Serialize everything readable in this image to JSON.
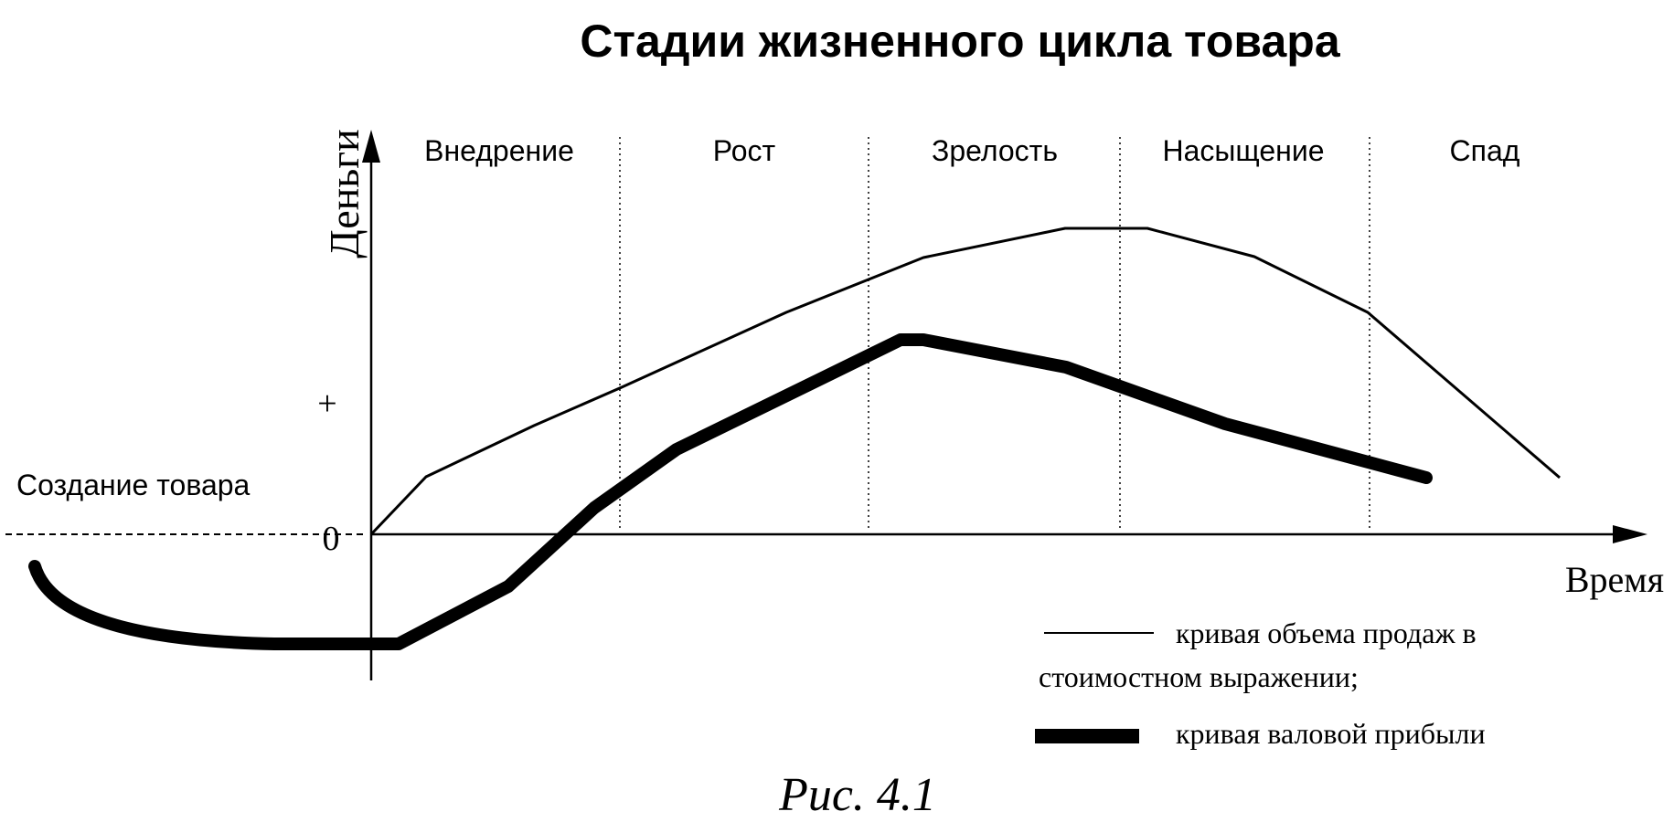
{
  "title": "Стадии жизненного цикла товара",
  "stages": [
    {
      "label": "Внедрение"
    },
    {
      "label": "Рост"
    },
    {
      "label": "Зрелость"
    },
    {
      "label": "Насыщение"
    },
    {
      "label": "Спад"
    }
  ],
  "pre_stage_label": "Создание товара",
  "axes": {
    "y_label": "Деньги",
    "x_label": "Время",
    "plus_mark": "+",
    "zero_mark": "0"
  },
  "legend": {
    "sales_line1": "кривая объема продаж в",
    "sales_line2": "стоимостном выражении;",
    "profit": "кривая валовой прибыли"
  },
  "caption": "Рис. 4.1",
  "colors": {
    "ink": "#000000",
    "background": "#ffffff"
  }
}
